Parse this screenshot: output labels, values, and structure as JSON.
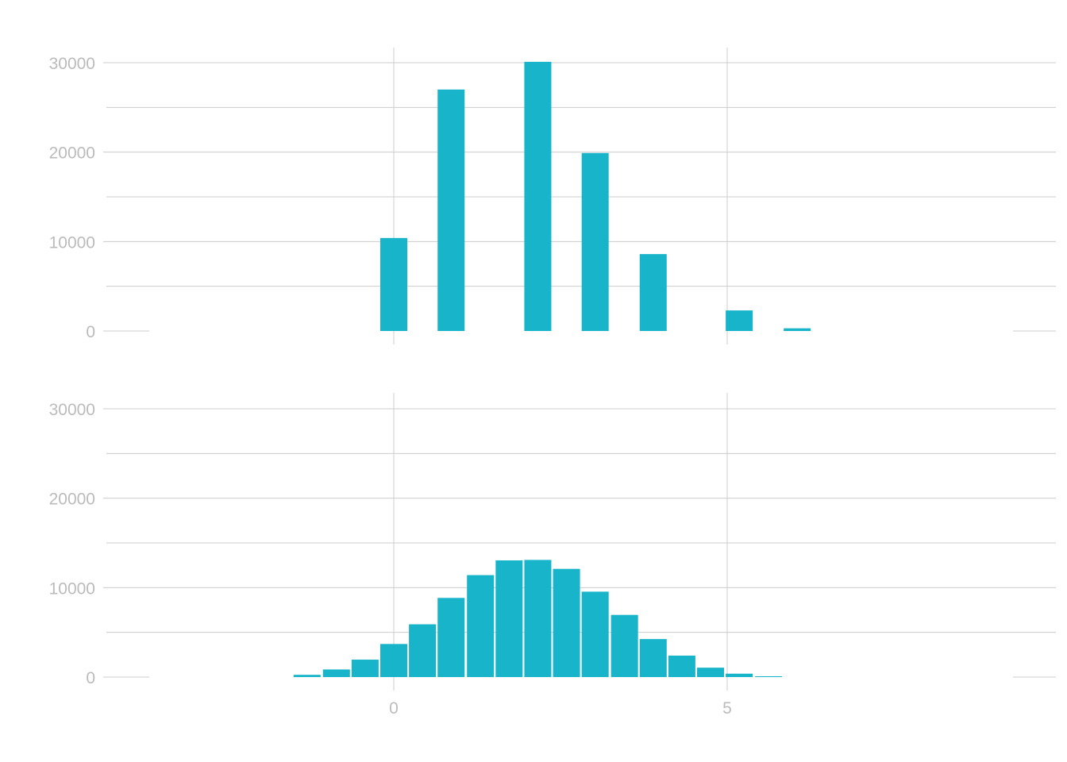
{
  "chart_data": [
    {
      "type": "bar",
      "title": "",
      "xlabel": "",
      "ylabel": "",
      "ylim": [
        0,
        31500
      ],
      "xlim": [
        -4.3,
        9.8
      ],
      "yticks": [
        "0",
        "10000",
        "20000",
        "30000"
      ],
      "xticks": [],
      "grid": true,
      "color": "#18b4c9",
      "bars": [
        {
          "x": 0.0,
          "value": 10400
        },
        {
          "x": 0.86,
          "value": 27000
        },
        {
          "x": 2.16,
          "value": 30100
        },
        {
          "x": 3.02,
          "value": 19900
        },
        {
          "x": 3.89,
          "value": 8600
        },
        {
          "x": 5.18,
          "value": 2300
        },
        {
          "x": 6.05,
          "value": 300
        }
      ]
    },
    {
      "type": "bar",
      "title": "",
      "xlabel": "",
      "ylabel": "",
      "ylim": [
        0,
        31500
      ],
      "xlim": [
        -4.3,
        9.8
      ],
      "yticks": [
        "0",
        "10000",
        "20000",
        "30000"
      ],
      "xticks": [
        "0",
        "5"
      ],
      "grid": true,
      "color": "#18b4c9",
      "bars": [
        {
          "x": -1.3,
          "value": 250
        },
        {
          "x": -0.86,
          "value": 850
        },
        {
          "x": -0.43,
          "value": 1950
        },
        {
          "x": 0.0,
          "value": 3700
        },
        {
          "x": 0.43,
          "value": 5900
        },
        {
          "x": 0.86,
          "value": 8850
        },
        {
          "x": 1.3,
          "value": 11400
        },
        {
          "x": 1.73,
          "value": 13050
        },
        {
          "x": 2.16,
          "value": 13100
        },
        {
          "x": 2.59,
          "value": 12100
        },
        {
          "x": 3.02,
          "value": 9550
        },
        {
          "x": 3.46,
          "value": 6950
        },
        {
          "x": 3.89,
          "value": 4250
        },
        {
          "x": 4.32,
          "value": 2400
        },
        {
          "x": 4.75,
          "value": 1050
        },
        {
          "x": 5.18,
          "value": 380
        },
        {
          "x": 5.62,
          "value": 80
        }
      ]
    }
  ]
}
